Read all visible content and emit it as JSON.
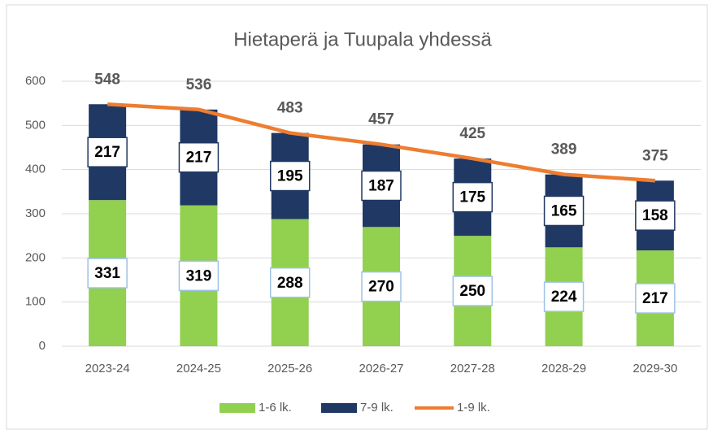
{
  "chart_data": {
    "type": "bar",
    "stacked": true,
    "title": "Hietaperä ja Tuupala yhdessä",
    "categories": [
      "2023-24",
      "2024-25",
      "2025-26",
      "2026-27",
      "2027-28",
      "2028-29",
      "2029-30"
    ],
    "series": [
      {
        "name": "1-6 lk.",
        "color": "#92d050",
        "type": "bar",
        "values": [
          331,
          319,
          288,
          270,
          250,
          224,
          217
        ]
      },
      {
        "name": "7-9 lk.",
        "color": "#203864",
        "type": "bar",
        "values": [
          217,
          217,
          195,
          187,
          175,
          165,
          158
        ]
      },
      {
        "name": "1-9 lk.",
        "color": "#ed7d31",
        "type": "line",
        "values": [
          548,
          536,
          483,
          457,
          425,
          389,
          375
        ]
      }
    ],
    "ylim": [
      0,
      600
    ],
    "yticks": [
      0,
      100,
      200,
      300,
      400,
      500,
      600
    ],
    "grid": true,
    "legend": "bottom"
  }
}
